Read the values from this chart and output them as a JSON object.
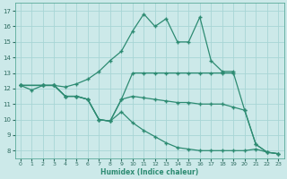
{
  "color": "#2d8b72",
  "background_color": "#cce9e9",
  "grid_color": "#a8d5d5",
  "xlim": [
    -0.5,
    23.5
  ],
  "ylim": [
    7.5,
    17.5
  ],
  "yticks": [
    8,
    9,
    10,
    11,
    12,
    13,
    14,
    15,
    16,
    17
  ],
  "xticks": [
    0,
    1,
    2,
    3,
    4,
    5,
    6,
    7,
    8,
    9,
    10,
    11,
    12,
    13,
    14,
    15,
    16,
    17,
    18,
    19,
    20,
    21,
    22,
    23
  ],
  "xlabel": "Humidex (Indice chaleur)",
  "line1_x": [
    0,
    1,
    2,
    3,
    4,
    5,
    6,
    7,
    8,
    9,
    10,
    11,
    12,
    13,
    14,
    15,
    16,
    17,
    18,
    19
  ],
  "line1_y": [
    12.2,
    11.9,
    12.2,
    12.2,
    12.1,
    12.3,
    12.6,
    13.1,
    13.8,
    14.4,
    15.7,
    16.8,
    16.0,
    16.5,
    15.0,
    15.0,
    16.6,
    13.8,
    13.1,
    13.1
  ],
  "line2_x": [
    0,
    2,
    3,
    4,
    5,
    6,
    7,
    8,
    9,
    10,
    11,
    12,
    13,
    14,
    15,
    16,
    17,
    18,
    19,
    20,
    21,
    22,
    23
  ],
  "line2_y": [
    12.2,
    12.2,
    12.2,
    11.5,
    11.5,
    11.3,
    10.0,
    9.9,
    11.3,
    13.0,
    13.0,
    13.0,
    13.0,
    13.0,
    13.0,
    13.0,
    13.0,
    13.0,
    13.0,
    10.6,
    8.4,
    7.9,
    7.8
  ],
  "line3_x": [
    0,
    2,
    3,
    4,
    5,
    6,
    7,
    8,
    9,
    10,
    11,
    12,
    13,
    14,
    15,
    16,
    17,
    18,
    19,
    20,
    21,
    22,
    23
  ],
  "line3_y": [
    12.2,
    12.2,
    12.2,
    11.5,
    11.5,
    11.3,
    10.0,
    9.9,
    11.3,
    11.5,
    11.4,
    11.3,
    11.2,
    11.1,
    11.1,
    11.0,
    11.0,
    11.0,
    10.8,
    10.6,
    8.4,
    7.9,
    7.8
  ],
  "line4_x": [
    0,
    2,
    3,
    4,
    5,
    6,
    7,
    8,
    9,
    10,
    11,
    12,
    13,
    14,
    15,
    16,
    17,
    18,
    19,
    20,
    21,
    22,
    23
  ],
  "line4_y": [
    12.2,
    12.2,
    12.2,
    11.5,
    11.5,
    11.3,
    10.0,
    9.9,
    10.5,
    9.8,
    9.3,
    8.9,
    8.5,
    8.2,
    8.1,
    8.0,
    8.0,
    8.0,
    8.0,
    8.0,
    8.1,
    7.9,
    7.8
  ]
}
